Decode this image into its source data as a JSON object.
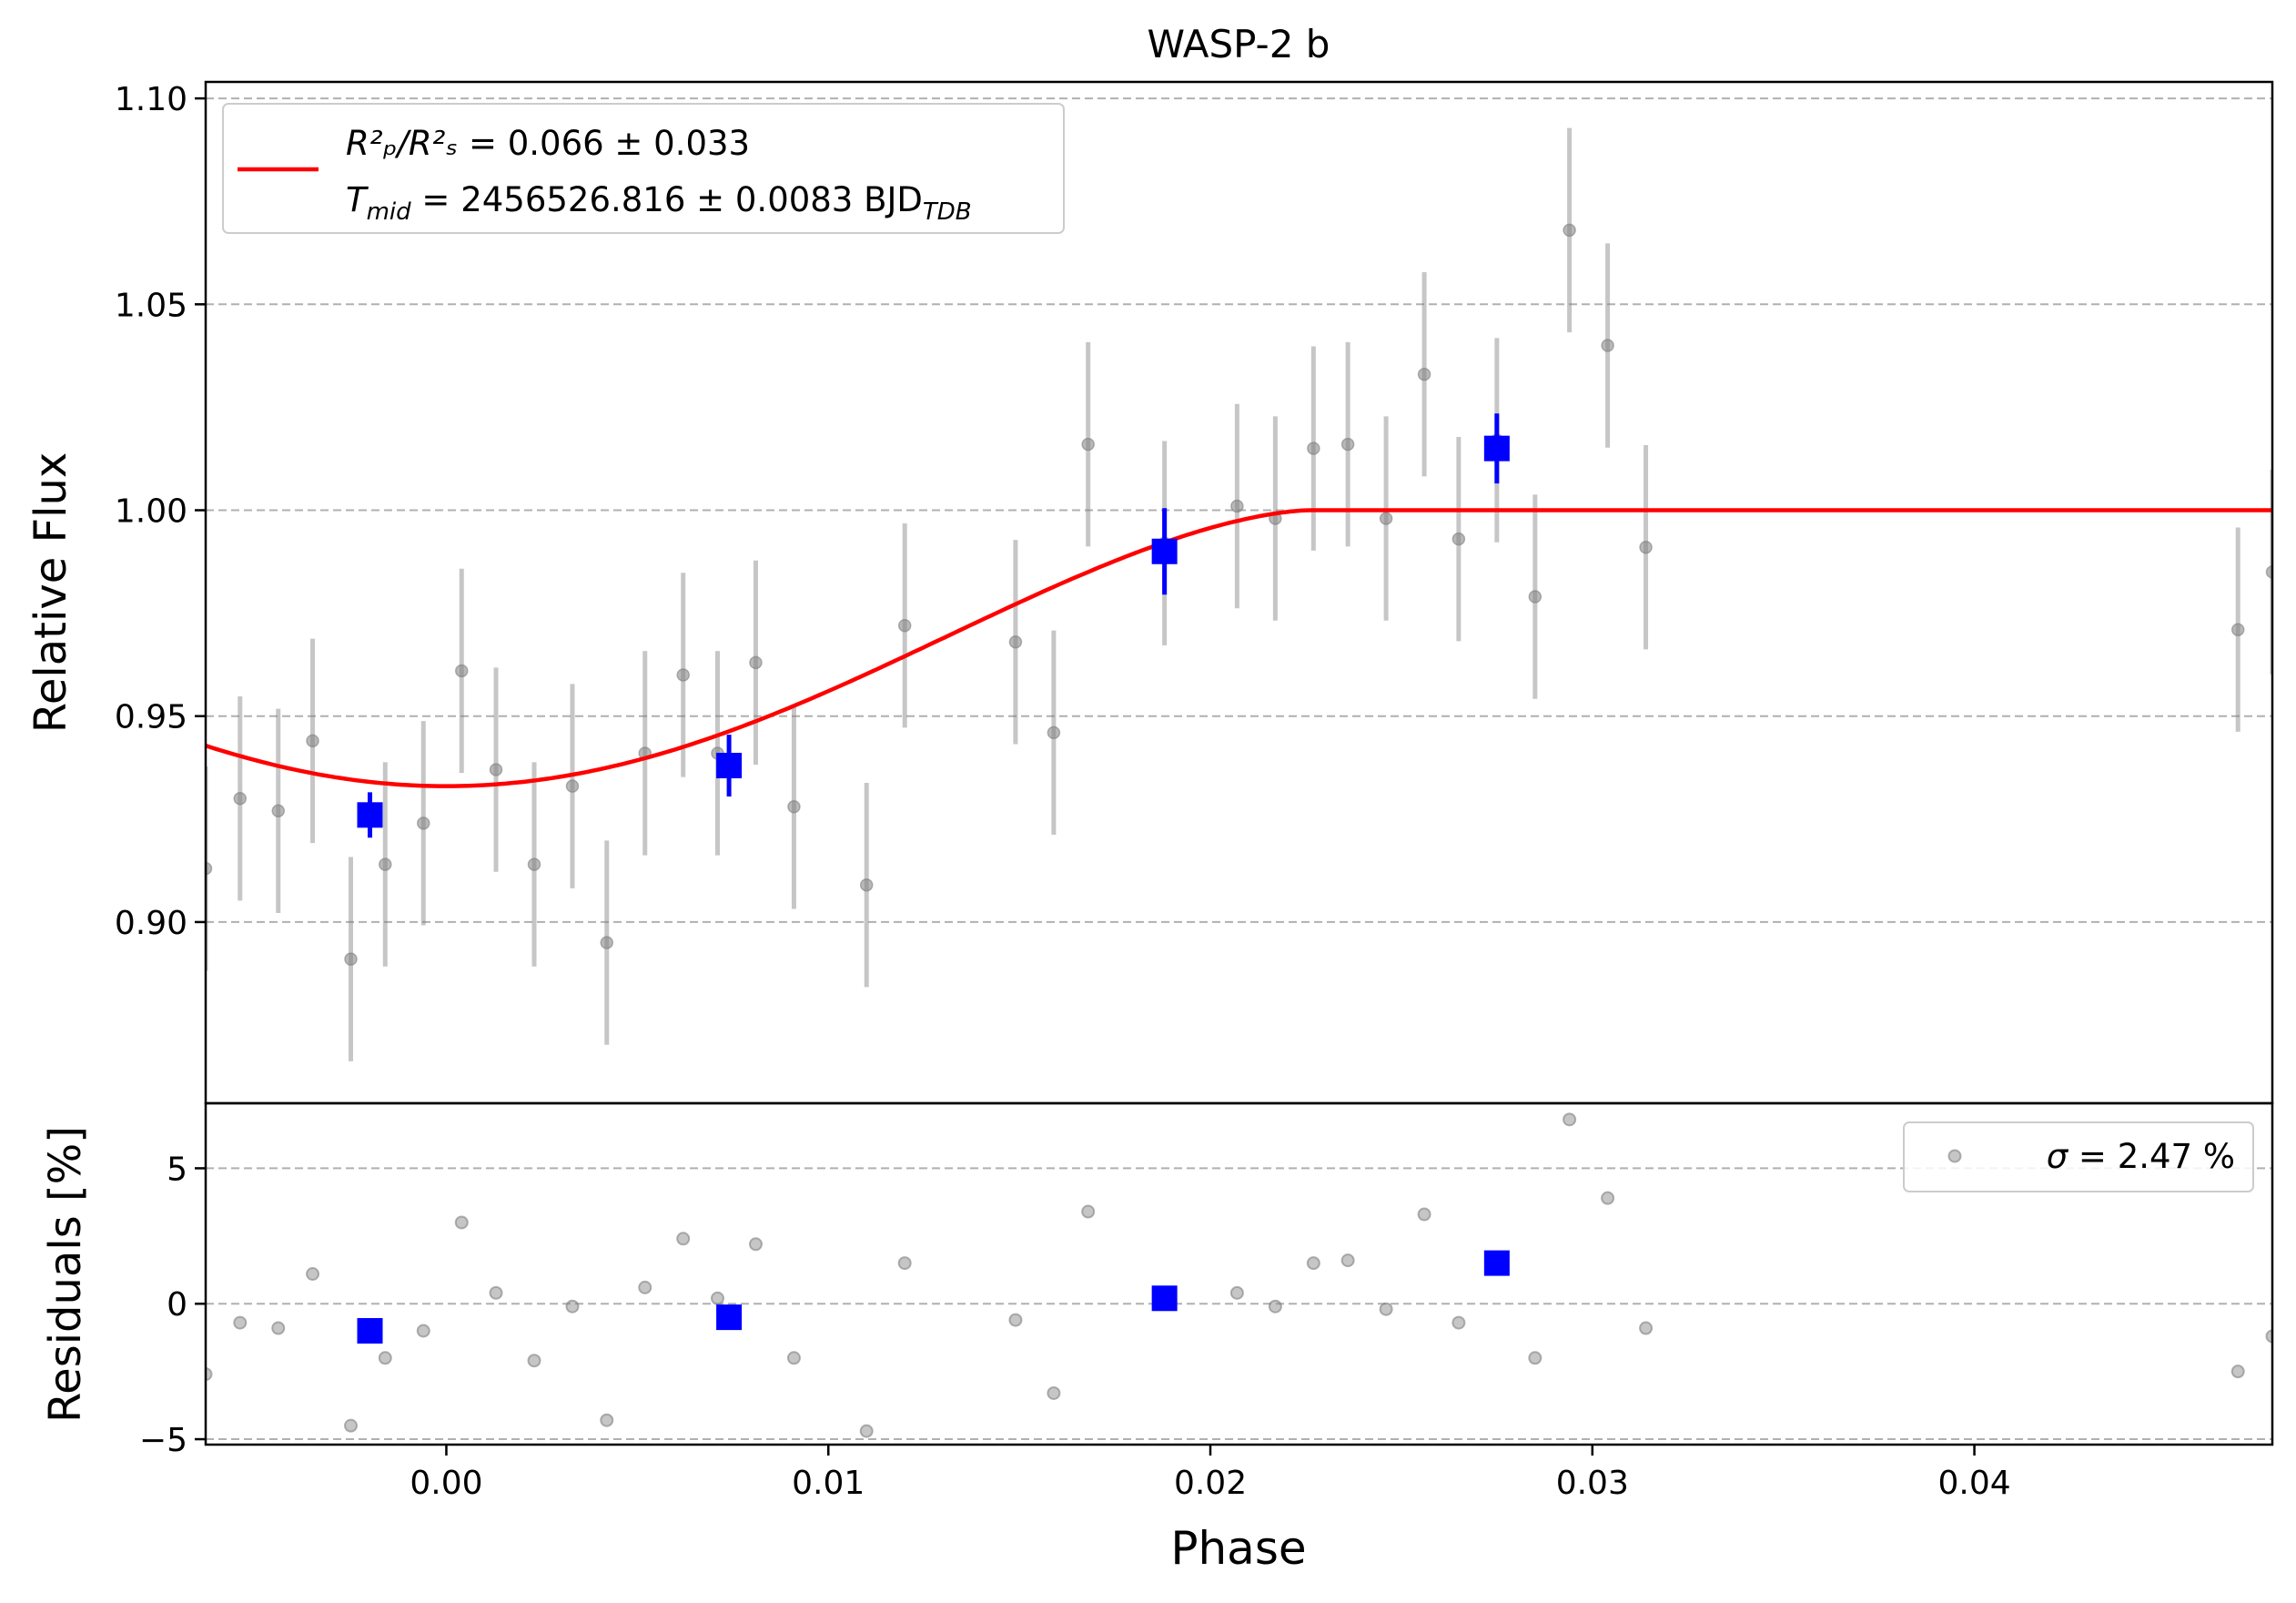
{
  "title": "WASP-2 b",
  "colors": {
    "data_point": "#808080",
    "binned": "#0000ff",
    "model": "#ff0000",
    "grid": "#b0b0b0"
  },
  "chart_data": [
    {
      "panel": "light-curve",
      "type": "scatter",
      "title": "WASP-2 b",
      "xlabel": "",
      "ylabel": "Relative Flux",
      "xlim": [
        -0.0063,
        0.0478
      ],
      "ylim": [
        0.856,
        1.104
      ],
      "yticks": [
        0.9,
        0.95,
        1.0,
        1.05,
        1.1
      ],
      "ytick_labels": [
        "0.90",
        "0.95",
        "1.00",
        "1.05",
        "1.10"
      ],
      "grid": "horizontal dashed",
      "legend_position": "top-left",
      "legend": {
        "ratio_lhs": "R²ₚ/R²ₛ",
        "ratio_value": " = 0.066 ± 0.033",
        "tmid_symbol": "T",
        "tmid_sub": "mid",
        "tmid_value": " = 2456526.816 ± 0.0083 BJD",
        "tmid_unit_sub": "TDB"
      },
      "series": [
        {
          "kind": "unbinned",
          "x": [
            -0.0063,
            -0.0054,
            -0.0044,
            -0.0035,
            -0.0025,
            -0.0016,
            -0.0006,
            0.0004,
            0.0013,
            0.0023,
            0.0033,
            0.0042,
            0.0052,
            0.0062,
            0.0071,
            0.0081,
            0.0091,
            0.011,
            0.012,
            0.0149,
            0.0159,
            0.0168,
            0.0188,
            0.0207,
            0.0217,
            0.0227,
            0.0236,
            0.0246,
            0.0256,
            0.0265,
            0.0275,
            0.0285,
            0.0294,
            0.0304,
            0.0314,
            0.0469,
            0.0478
          ],
          "y": [
            0.913,
            0.93,
            0.927,
            0.944,
            0.891,
            0.914,
            0.924,
            0.961,
            0.937,
            0.914,
            0.933,
            0.895,
            0.941,
            0.96,
            0.941,
            0.963,
            0.928,
            0.909,
            0.972,
            0.968,
            0.946,
            1.016,
            0.992,
            1.001,
            0.998,
            1.015,
            1.016,
            0.998,
            1.033,
            0.993,
            1.017,
            0.979,
            1.068,
            1.04,
            0.991,
            0.971,
            0.985
          ],
          "yerr": 0.0248
        },
        {
          "kind": "binned",
          "x": [
            -0.002,
            0.0074,
            0.0188,
            0.0275
          ],
          "y": [
            0.926,
            0.938,
            0.99,
            1.015
          ],
          "yerr": [
            0.0055,
            0.0075,
            0.0105,
            0.0085
          ]
        },
        {
          "kind": "model",
          "transit_midpoint": 0.0,
          "egress_end": 0.0226,
          "min_flux": 0.933,
          "baseline": 1.0
        }
      ]
    },
    {
      "panel": "residuals",
      "type": "scatter",
      "xlabel": "Phase",
      "ylabel": "Residuals [%]",
      "xlim": [
        -0.0063,
        0.0478
      ],
      "ylim": [
        -5.2,
        7.4
      ],
      "yticks": [
        -5,
        0,
        5
      ],
      "ytick_labels": [
        "−5",
        "0",
        "5"
      ],
      "xticks": [
        0.0,
        0.01,
        0.02,
        0.03,
        0.04
      ],
      "xtick_labels": [
        "0.00",
        "0.01",
        "0.02",
        "0.03",
        "0.04"
      ],
      "grid": "horizontal dashed",
      "legend_position": "top-right",
      "legend": {
        "symbol": "σ",
        "value": " = 2.47 %"
      },
      "series": [
        {
          "kind": "unbinned",
          "x": [
            -0.0063,
            -0.0054,
            -0.0044,
            -0.0035,
            -0.0025,
            -0.0016,
            -0.0006,
            0.0004,
            0.0013,
            0.0023,
            0.0033,
            0.0042,
            0.0052,
            0.0062,
            0.0071,
            0.0081,
            0.0091,
            0.011,
            0.012,
            0.0149,
            0.0159,
            0.0168,
            0.0188,
            0.0207,
            0.0217,
            0.0227,
            0.0236,
            0.0246,
            0.0256,
            0.0265,
            0.0275,
            0.0285,
            0.0294,
            0.0304,
            0.0314,
            0.0469,
            0.0478
          ],
          "y": [
            -2.6,
            -0.7,
            -0.9,
            1.1,
            -4.5,
            -2.0,
            -1.0,
            3.0,
            0.4,
            -2.1,
            -0.1,
            -4.3,
            0.6,
            2.4,
            0.2,
            2.2,
            -2.0,
            -4.7,
            1.5,
            -0.6,
            -3.3,
            3.4,
            0.2,
            0.4,
            -0.1,
            1.5,
            1.6,
            -0.2,
            3.3,
            -0.7,
            1.6,
            -2.0,
            6.8,
            3.9,
            -0.9,
            -2.5,
            -1.2
          ]
        },
        {
          "kind": "binned",
          "x": [
            -0.002,
            0.0074,
            0.0188,
            0.0275
          ],
          "y": [
            -1.0,
            -0.5,
            0.2,
            1.5
          ]
        }
      ]
    }
  ]
}
